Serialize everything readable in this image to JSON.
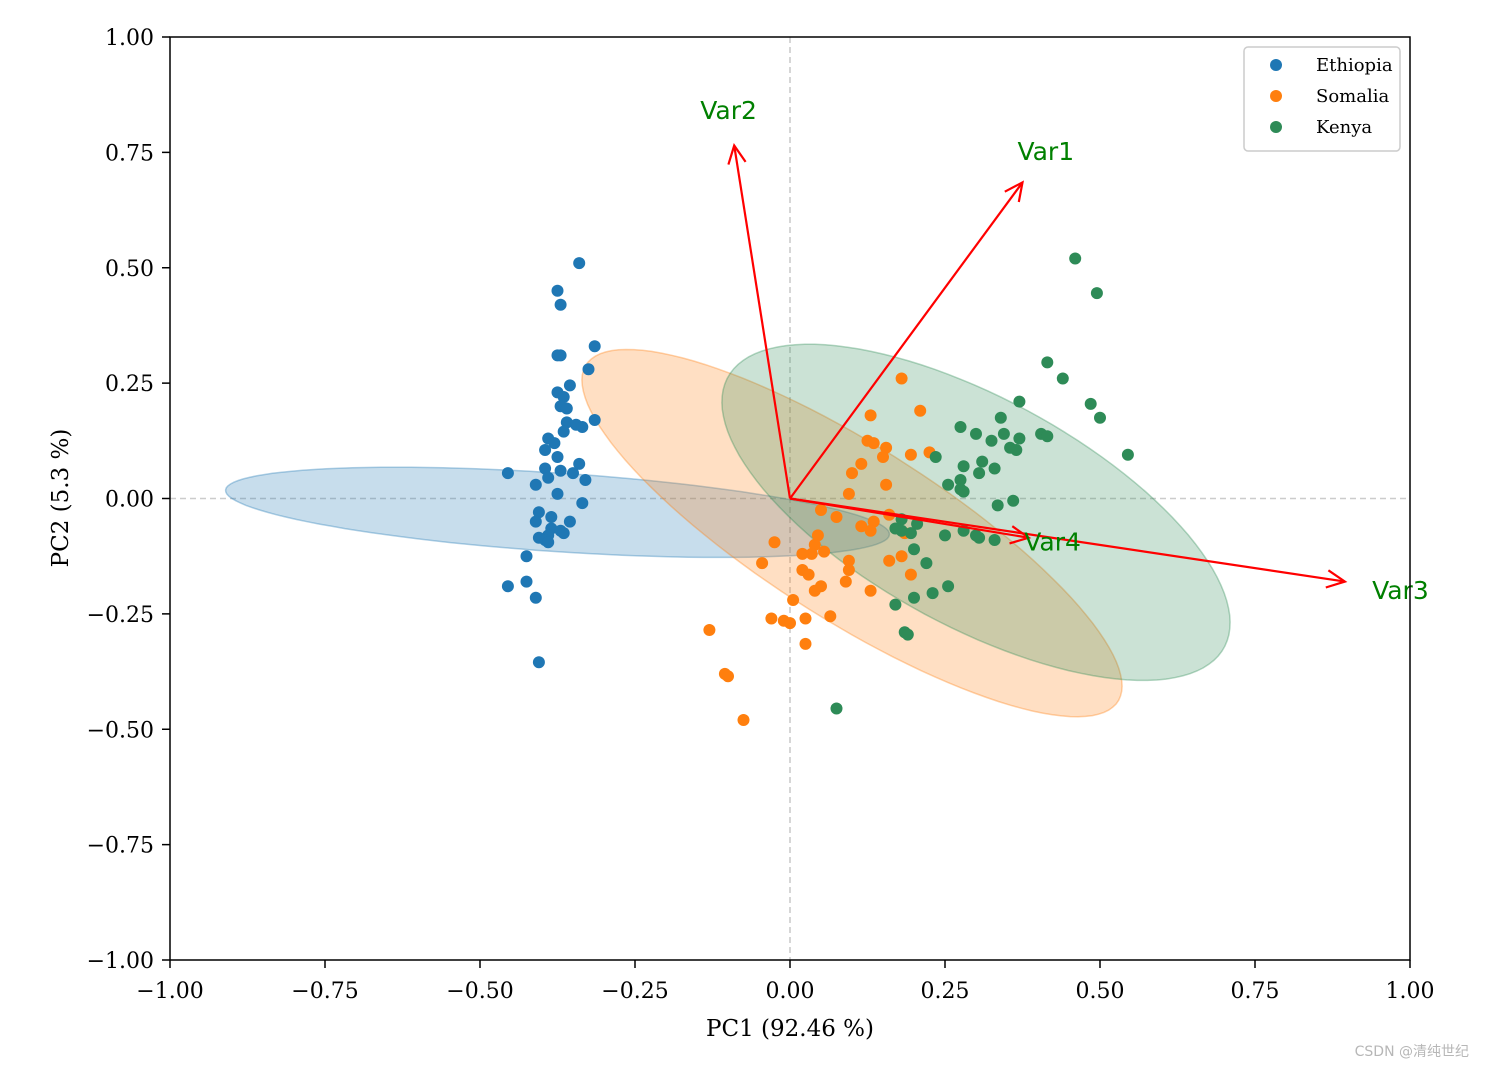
{
  "watermark": "CSDN @清纯世纪",
  "chart_data": {
    "type": "scatter",
    "title": "",
    "xlabel": "PC1 (92.46 %)",
    "ylabel": "PC2 (5.3 %)",
    "xlim": [
      -1.0,
      1.0
    ],
    "ylim": [
      -1.0,
      1.0
    ],
    "xticks": [
      -1.0,
      -0.75,
      -0.5,
      -0.25,
      0.0,
      0.25,
      0.5,
      0.75,
      1.0
    ],
    "yticks": [
      -1.0,
      -0.75,
      -0.5,
      -0.25,
      0.0,
      0.25,
      0.5,
      0.75,
      1.0
    ],
    "xtick_labels": [
      "−1.00",
      "−0.75",
      "−0.50",
      "−0.25",
      "0.00",
      "0.25",
      "0.50",
      "0.75",
      "1.00"
    ],
    "ytick_labels": [
      "−1.00",
      "−0.75",
      "−0.50",
      "−0.25",
      "0.00",
      "0.25",
      "0.50",
      "0.75",
      "1.00"
    ],
    "grid": false,
    "reference_lines": {
      "x": 0,
      "y": 0,
      "style": "dashed",
      "color": "#cccccc"
    },
    "legend": {
      "position": "top-right"
    },
    "series": [
      {
        "name": "Ethiopia",
        "color": "#1f77b4",
        "ellipse": {
          "center": [
            -0.375,
            -0.03
          ],
          "width": 0.17,
          "height": 1.075,
          "angle_deg": 84.8
        },
        "points": [
          [
            -0.34,
            0.51
          ],
          [
            -0.375,
            0.45
          ],
          [
            -0.37,
            0.42
          ],
          [
            -0.315,
            0.33
          ],
          [
            -0.375,
            0.31
          ],
          [
            -0.37,
            0.31
          ],
          [
            -0.325,
            0.28
          ],
          [
            -0.355,
            0.245
          ],
          [
            -0.375,
            0.23
          ],
          [
            -0.365,
            0.22
          ],
          [
            -0.37,
            0.2
          ],
          [
            -0.36,
            0.195
          ],
          [
            -0.315,
            0.17
          ],
          [
            -0.36,
            0.165
          ],
          [
            -0.345,
            0.16
          ],
          [
            -0.335,
            0.155
          ],
          [
            -0.365,
            0.145
          ],
          [
            -0.39,
            0.13
          ],
          [
            -0.38,
            0.12
          ],
          [
            -0.395,
            0.105
          ],
          [
            -0.375,
            0.09
          ],
          [
            -0.34,
            0.075
          ],
          [
            -0.395,
            0.065
          ],
          [
            -0.37,
            0.06
          ],
          [
            -0.35,
            0.055
          ],
          [
            -0.39,
            0.045
          ],
          [
            -0.33,
            0.04
          ],
          [
            -0.41,
            0.03
          ],
          [
            -0.455,
            0.055
          ],
          [
            -0.375,
            0.01
          ],
          [
            -0.335,
            -0.01
          ],
          [
            -0.405,
            -0.03
          ],
          [
            -0.385,
            -0.04
          ],
          [
            -0.41,
            -0.05
          ],
          [
            -0.355,
            -0.05
          ],
          [
            -0.385,
            -0.065
          ],
          [
            -0.37,
            -0.07
          ],
          [
            -0.365,
            -0.075
          ],
          [
            -0.39,
            -0.08
          ],
          [
            -0.405,
            -0.085
          ],
          [
            -0.395,
            -0.09
          ],
          [
            -0.39,
            -0.095
          ],
          [
            -0.425,
            -0.125
          ],
          [
            -0.425,
            -0.18
          ],
          [
            -0.455,
            -0.19
          ],
          [
            -0.41,
            -0.215
          ],
          [
            -0.405,
            -0.355
          ]
        ]
      },
      {
        "name": "Somalia",
        "color": "#ff7f0e",
        "ellipse": {
          "center": [
            0.1,
            -0.075
          ],
          "width": 0.34,
          "height": 1.13,
          "angle_deg": 48.1
        },
        "points": [
          [
            0.18,
            0.26
          ],
          [
            0.21,
            0.19
          ],
          [
            0.13,
            0.18
          ],
          [
            0.125,
            0.125
          ],
          [
            0.135,
            0.12
          ],
          [
            0.155,
            0.11
          ],
          [
            0.225,
            0.1
          ],
          [
            0.195,
            0.095
          ],
          [
            0.15,
            0.09
          ],
          [
            0.115,
            0.075
          ],
          [
            0.1,
            0.055
          ],
          [
            0.155,
            0.03
          ],
          [
            0.095,
            0.01
          ],
          [
            0.05,
            -0.025
          ],
          [
            0.075,
            -0.04
          ],
          [
            0.16,
            -0.035
          ],
          [
            0.135,
            -0.05
          ],
          [
            0.115,
            -0.06
          ],
          [
            0.13,
            -0.07
          ],
          [
            0.185,
            -0.075
          ],
          [
            0.045,
            -0.08
          ],
          [
            -0.025,
            -0.095
          ],
          [
            0.04,
            -0.1
          ],
          [
            0.055,
            -0.115
          ],
          [
            0.035,
            -0.12
          ],
          [
            0.02,
            -0.12
          ],
          [
            0.095,
            -0.135
          ],
          [
            0.16,
            -0.135
          ],
          [
            0.18,
            -0.125
          ],
          [
            -0.045,
            -0.14
          ],
          [
            0.02,
            -0.155
          ],
          [
            0.095,
            -0.155
          ],
          [
            0.195,
            -0.165
          ],
          [
            0.03,
            -0.165
          ],
          [
            0.09,
            -0.18
          ],
          [
            0.05,
            -0.19
          ],
          [
            0.13,
            -0.2
          ],
          [
            0.04,
            -0.2
          ],
          [
            0.005,
            -0.22
          ],
          [
            0.065,
            -0.255
          ],
          [
            0.025,
            -0.26
          ],
          [
            -0.03,
            -0.26
          ],
          [
            -0.01,
            -0.265
          ],
          [
            0.0,
            -0.27
          ],
          [
            -0.13,
            -0.285
          ],
          [
            0.025,
            -0.315
          ],
          [
            -0.105,
            -0.38
          ],
          [
            -0.1,
            -0.385
          ],
          [
            -0.075,
            -0.48
          ]
        ]
      },
      {
        "name": "Kenya",
        "color": "#2e8b57",
        "ellipse": {
          "center": [
            0.3,
            -0.03
          ],
          "width": 0.45,
          "height": 1.0,
          "angle_deg": 50.1
        },
        "points": [
          [
            0.46,
            0.52
          ],
          [
            0.495,
            0.445
          ],
          [
            0.415,
            0.295
          ],
          [
            0.44,
            0.26
          ],
          [
            0.37,
            0.21
          ],
          [
            0.485,
            0.205
          ],
          [
            0.5,
            0.175
          ],
          [
            0.34,
            0.175
          ],
          [
            0.275,
            0.155
          ],
          [
            0.3,
            0.14
          ],
          [
            0.345,
            0.14
          ],
          [
            0.405,
            0.14
          ],
          [
            0.415,
            0.135
          ],
          [
            0.325,
            0.125
          ],
          [
            0.37,
            0.13
          ],
          [
            0.355,
            0.11
          ],
          [
            0.365,
            0.105
          ],
          [
            0.545,
            0.095
          ],
          [
            0.235,
            0.09
          ],
          [
            0.31,
            0.08
          ],
          [
            0.28,
            0.07
          ],
          [
            0.33,
            0.065
          ],
          [
            0.305,
            0.055
          ],
          [
            0.275,
            0.04
          ],
          [
            0.255,
            0.03
          ],
          [
            0.275,
            0.02
          ],
          [
            0.28,
            0.015
          ],
          [
            0.36,
            -0.005
          ],
          [
            0.335,
            -0.015
          ],
          [
            0.18,
            -0.045
          ],
          [
            0.205,
            -0.055
          ],
          [
            0.17,
            -0.065
          ],
          [
            0.18,
            -0.07
          ],
          [
            0.195,
            -0.075
          ],
          [
            0.28,
            -0.07
          ],
          [
            0.25,
            -0.08
          ],
          [
            0.3,
            -0.08
          ],
          [
            0.305,
            -0.085
          ],
          [
            0.33,
            -0.09
          ],
          [
            0.2,
            -0.11
          ],
          [
            0.22,
            -0.14
          ],
          [
            0.255,
            -0.19
          ],
          [
            0.23,
            -0.205
          ],
          [
            0.2,
            -0.215
          ],
          [
            0.17,
            -0.23
          ],
          [
            0.185,
            -0.29
          ],
          [
            0.19,
            -0.295
          ],
          [
            0.075,
            -0.455
          ]
        ]
      }
    ],
    "loadings": [
      {
        "label": "Var1",
        "x": 0.375,
        "y": 0.685
      },
      {
        "label": "Var2",
        "x": -0.09,
        "y": 0.765
      },
      {
        "label": "Var3",
        "x": 0.895,
        "y": -0.18
      },
      {
        "label": "Var4",
        "x": 0.385,
        "y": -0.085
      }
    ],
    "loading_style": {
      "arrow_color": "#ff0000",
      "label_color": "#008000"
    }
  }
}
